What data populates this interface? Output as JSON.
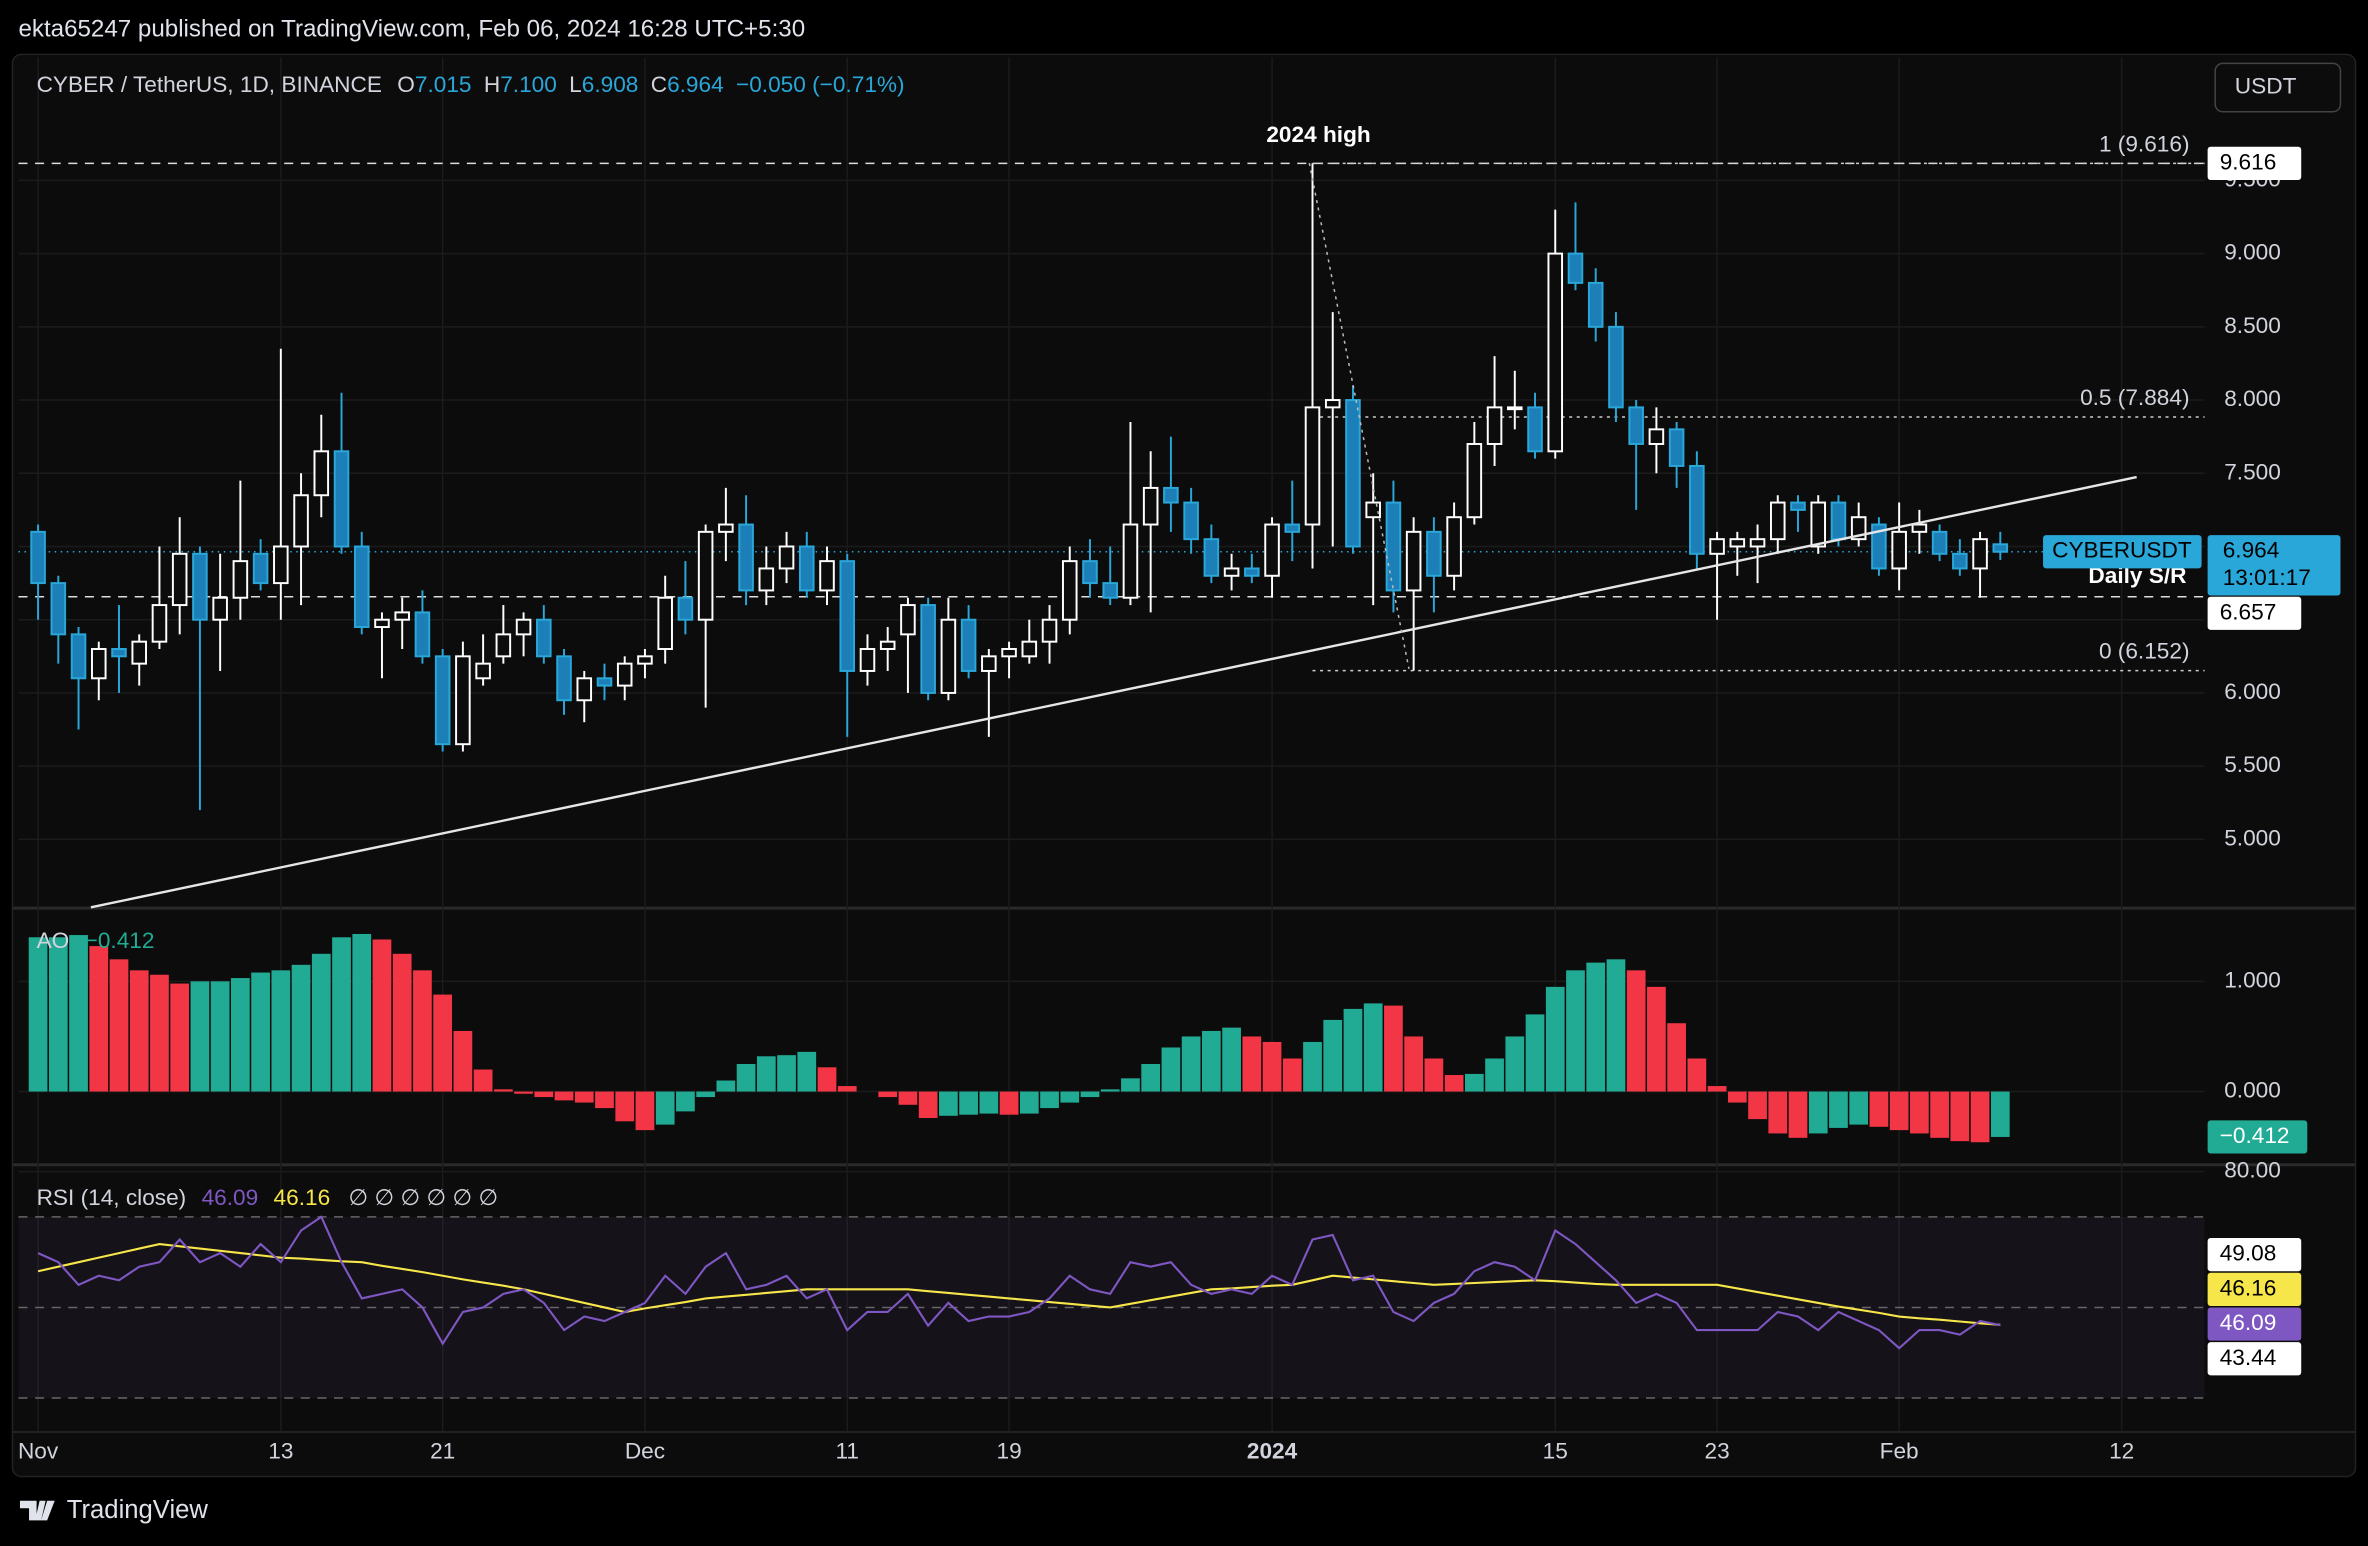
{
  "header": "ekta65247 published on TradingView.com, Feb 06, 2024 16:28 UTC+5:30",
  "currency_button": "USDT",
  "footer_brand": "TradingView",
  "chart_data": [
    {
      "type": "candlestick",
      "legend": {
        "symbol": "CYBER / TetherUS, 1D, BINANCE",
        "o_label": "O",
        "o": "7.015",
        "h_label": "H",
        "h": "7.100",
        "l_label": "L",
        "l": "6.908",
        "c_label": "C",
        "c": "6.964",
        "change": "−0.050 (−0.71%)"
      },
      "categories": [
        "Nov",
        null,
        null,
        null,
        null,
        null,
        null,
        null,
        null,
        null,
        null,
        null,
        "13",
        null,
        null,
        null,
        null,
        null,
        null,
        null,
        "21",
        null,
        null,
        null,
        null,
        null,
        null,
        null,
        null,
        null,
        "Dec",
        null,
        null,
        null,
        null,
        null,
        null,
        null,
        null,
        null,
        "11",
        null,
        null,
        null,
        null,
        null,
        null,
        null,
        "19",
        null,
        null,
        null,
        null,
        null,
        null,
        null,
        null,
        null,
        null,
        null,
        null,
        "2024",
        null,
        null,
        null,
        null,
        null,
        null,
        null,
        null,
        null,
        null,
        null,
        null,
        null,
        "15",
        null,
        null,
        null,
        null,
        null,
        null,
        null,
        "23",
        null,
        null,
        null,
        null,
        null,
        null,
        null,
        null,
        "Feb",
        null,
        null,
        null,
        null,
        null,
        null,
        null,
        null,
        null,
        null,
        "12",
        null,
        null,
        null,
        null
      ],
      "open": [
        7.1,
        6.75,
        6.4,
        6.1,
        6.3,
        6.2,
        6.35,
        6.6,
        6.95,
        6.5,
        6.65,
        6.95,
        6.75,
        7.0,
        7.35,
        7.65,
        7.0,
        6.45,
        6.5,
        6.55,
        6.25,
        5.65,
        6.1,
        6.25,
        6.4,
        6.5,
        6.25,
        5.95,
        6.1,
        6.05,
        6.2,
        6.3,
        6.65,
        6.5,
        7.1,
        7.15,
        6.7,
        6.85,
        7.0,
        6.7,
        6.9,
        6.15,
        6.3,
        6.4,
        6.6,
        6.0,
        6.5,
        6.15,
        6.25,
        6.25,
        6.35,
        6.5,
        6.9,
        6.75,
        6.65,
        7.15,
        7.4,
        7.3,
        7.05,
        6.8,
        6.85,
        6.8,
        7.15,
        7.15,
        7.95,
        8.0,
        7.2,
        7.3,
        6.7,
        7.1,
        6.8,
        7.2,
        7.7,
        7.95,
        7.95,
        7.65,
        9.0,
        8.8,
        8.5,
        7.95,
        7.7,
        7.8,
        7.55,
        6.95,
        7.0,
        7.0,
        7.05,
        7.3,
        7.0,
        7.3,
        7.05,
        7.15,
        6.85,
        7.1,
        7.1,
        6.95,
        6.85,
        7.015,
        null,
        null,
        null,
        null,
        null,
        null,
        null,
        null,
        null,
        null
      ],
      "high": [
        7.15,
        6.8,
        6.45,
        6.35,
        6.6,
        6.4,
        7.0,
        7.2,
        7.0,
        6.95,
        7.45,
        7.05,
        8.35,
        7.5,
        7.9,
        8.05,
        7.1,
        6.55,
        6.65,
        6.7,
        6.3,
        6.35,
        6.4,
        6.6,
        6.55,
        6.6,
        6.3,
        6.15,
        6.2,
        6.25,
        6.3,
        6.8,
        6.9,
        7.15,
        7.4,
        7.35,
        7.0,
        7.1,
        7.1,
        7.0,
        6.95,
        6.4,
        6.45,
        6.65,
        6.65,
        6.65,
        6.6,
        6.3,
        6.35,
        6.5,
        6.6,
        7.0,
        7.05,
        7.0,
        7.85,
        7.65,
        7.75,
        7.4,
        7.15,
        6.95,
        6.95,
        7.2,
        7.45,
        9.616,
        8.6,
        8.1,
        7.5,
        7.45,
        7.2,
        7.2,
        7.3,
        7.85,
        8.3,
        8.2,
        8.05,
        9.3,
        9.35,
        8.9,
        8.6,
        8.0,
        7.95,
        7.85,
        7.65,
        7.1,
        7.1,
        7.15,
        7.35,
        7.35,
        7.35,
        7.35,
        7.3,
        7.2,
        7.3,
        7.25,
        7.15,
        7.05,
        7.1,
        7.1,
        null,
        null,
        null,
        null,
        null,
        null,
        null,
        null,
        null,
        null
      ],
      "low": [
        6.5,
        6.2,
        5.75,
        5.95,
        6.0,
        6.05,
        6.3,
        6.4,
        5.2,
        6.15,
        6.5,
        6.7,
        6.5,
        6.6,
        7.2,
        6.95,
        6.4,
        6.1,
        6.3,
        6.2,
        5.6,
        5.6,
        6.05,
        6.2,
        6.25,
        6.2,
        5.85,
        5.8,
        5.95,
        5.95,
        6.1,
        6.2,
        6.4,
        5.9,
        6.9,
        6.6,
        6.6,
        6.75,
        6.65,
        6.6,
        5.7,
        6.05,
        6.15,
        6.0,
        5.95,
        5.95,
        6.1,
        5.7,
        6.1,
        6.2,
        6.2,
        6.4,
        6.65,
        6.6,
        6.6,
        6.55,
        7.1,
        6.95,
        6.75,
        6.7,
        6.75,
        6.65,
        6.9,
        6.85,
        7.0,
        6.95,
        6.6,
        6.55,
        6.152,
        6.55,
        6.7,
        7.15,
        7.55,
        7.8,
        7.6,
        7.6,
        8.75,
        8.4,
        7.85,
        7.25,
        7.5,
        7.4,
        6.85,
        6.5,
        6.8,
        6.75,
        6.95,
        7.1,
        6.95,
        7.0,
        7.0,
        6.8,
        6.7,
        6.95,
        6.9,
        6.8,
        6.65,
        6.908,
        null,
        null,
        null,
        null,
        null,
        null,
        null,
        null,
        null,
        null
      ],
      "close": [
        6.75,
        6.4,
        6.1,
        6.3,
        6.25,
        6.35,
        6.6,
        6.95,
        6.5,
        6.65,
        6.9,
        6.75,
        7.0,
        7.35,
        7.65,
        7.0,
        6.45,
        6.5,
        6.55,
        6.25,
        5.65,
        6.25,
        6.2,
        6.4,
        6.5,
        6.25,
        5.95,
        6.1,
        6.05,
        6.2,
        6.25,
        6.65,
        6.5,
        7.1,
        7.15,
        6.7,
        6.85,
        7.0,
        6.7,
        6.9,
        6.15,
        6.3,
        6.35,
        6.6,
        6.0,
        6.5,
        6.15,
        6.25,
        6.3,
        6.35,
        6.5,
        6.9,
        6.75,
        6.65,
        7.15,
        7.4,
        7.3,
        7.05,
        6.8,
        6.85,
        6.8,
        7.15,
        7.1,
        7.95,
        8.0,
        7.0,
        7.3,
        6.7,
        7.1,
        6.8,
        7.2,
        7.7,
        7.95,
        7.95,
        7.65,
        9.0,
        8.8,
        8.5,
        7.95,
        7.7,
        7.8,
        7.55,
        6.95,
        7.05,
        7.05,
        7.05,
        7.3,
        7.25,
        7.3,
        7.05,
        7.2,
        6.85,
        7.1,
        7.15,
        6.95,
        6.85,
        7.05,
        6.964,
        null,
        null,
        null,
        null,
        null,
        null,
        null,
        null,
        null,
        null
      ],
      "up_color": "#ffffff",
      "down_color": "#2aa7d9",
      "xlim": [
        -0.97,
        107.1
      ],
      "ylim": [
        4.546,
        10.34
      ],
      "yticks": [
        {
          "value": 5,
          "label": "5.000"
        },
        {
          "value": 5.5,
          "label": "5.500"
        },
        {
          "value": 6,
          "label": "6.000"
        },
        {
          "value": 6.5,
          "label": "6.500"
        },
        {
          "value": 7,
          "label": "7.000"
        },
        {
          "value": 7.5,
          "label": "7.500"
        },
        {
          "value": 8,
          "label": "8.000"
        },
        {
          "value": 8.5,
          "label": "8.500"
        },
        {
          "value": 9,
          "label": "9.000"
        },
        {
          "value": 9.5,
          "label": "9.500"
        }
      ],
      "grid": true,
      "high_level": {
        "value": 9.616,
        "label": "2024 high"
      },
      "fib_levels": [
        {
          "value": 9.616,
          "label": "1 (9.616)"
        },
        {
          "value": 7.884,
          "label": "0.5 (7.884)"
        },
        {
          "value": 6.152,
          "label": "0 (6.152)"
        }
      ],
      "sr_level": {
        "value": 6.657,
        "label": "Daily S/R"
      },
      "last_price": {
        "symbol": "CYBERUSDT",
        "countdown": "13:01:17"
      }
    },
    {
      "type": "bar",
      "title": "AO",
      "values": [
        1.4,
        1.4,
        1.42,
        1.32,
        1.2,
        1.1,
        1.06,
        0.98,
        1.0,
        1.0,
        1.03,
        1.08,
        1.1,
        1.15,
        1.25,
        1.4,
        1.43,
        1.38,
        1.25,
        1.1,
        0.88,
        0.55,
        0.2,
        0.02,
        -0.02,
        -0.05,
        -0.08,
        -0.1,
        -0.15,
        -0.27,
        -0.35,
        -0.3,
        -0.18,
        -0.05,
        0.1,
        0.25,
        0.32,
        0.33,
        0.36,
        0.22,
        0.05,
        0.0,
        -0.05,
        -0.12,
        -0.24,
        -0.22,
        -0.21,
        -0.2,
        -0.21,
        -0.2,
        -0.15,
        -0.1,
        -0.05,
        0.02,
        0.12,
        0.25,
        0.4,
        0.5,
        0.55,
        0.58,
        0.5,
        0.45,
        0.3,
        0.45,
        0.65,
        0.75,
        0.8,
        0.78,
        0.5,
        0.3,
        0.15,
        0.16,
        0.3,
        0.5,
        0.7,
        0.95,
        1.1,
        1.17,
        1.2,
        1.1,
        0.95,
        0.62,
        0.3,
        0.05,
        -0.1,
        -0.25,
        -0.38,
        -0.42,
        -0.38,
        -0.33,
        -0.3,
        -0.32,
        -0.35,
        -0.38,
        -0.42,
        -0.45,
        -0.46,
        -0.412,
        null,
        null,
        null,
        null,
        null,
        null,
        null,
        null,
        null,
        null
      ],
      "last_value_label": "−0.412",
      "up_color": "#22ab94",
      "down_color": "#f23645",
      "ylim": [
        -0.644,
        1.644
      ],
      "yticks": [
        {
          "value": 0,
          "label": "0.000"
        },
        {
          "value": 1,
          "label": "1.000"
        }
      ],
      "grid": true
    },
    {
      "type": "line",
      "title": "RSI (14, close)",
      "legend_extra": "∅ ∅ ∅ ∅ ∅ ∅",
      "series": [
        {
          "color": "#7e57c2",
          "values": [
            62,
            60,
            55,
            57,
            56,
            59,
            60,
            65,
            60,
            62,
            59,
            64,
            60,
            67,
            70,
            60,
            52,
            53,
            54,
            50,
            42,
            49,
            50,
            53,
            54,
            51,
            45,
            48,
            47,
            49,
            51,
            57,
            53,
            59,
            62,
            54,
            55,
            57,
            52,
            54,
            45,
            49,
            49,
            53,
            46,
            51,
            47,
            48,
            48,
            49,
            52,
            57,
            54,
            53,
            60,
            59,
            60,
            55,
            53,
            54,
            53,
            57,
            55,
            65,
            66,
            56,
            57,
            49,
            47,
            51,
            53,
            58,
            60,
            59,
            56,
            67,
            64,
            60,
            56,
            51,
            53,
            51,
            45,
            45,
            45,
            45,
            49,
            48,
            45,
            49,
            47,
            45,
            41,
            45,
            45,
            44,
            47,
            46.09,
            null,
            null,
            null,
            null,
            null,
            null,
            null,
            null,
            null,
            null
          ]
        },
        {
          "color": "#f7e64a",
          "values": [
            58,
            59,
            60,
            61,
            62,
            63,
            64,
            63.5,
            63,
            62.5,
            62,
            61.5,
            61,
            60.8,
            60.5,
            60.2,
            60,
            59.2,
            58.5,
            57.8,
            57,
            56.2,
            55.5,
            54.8,
            54,
            53,
            52,
            51,
            50,
            49,
            49.8,
            50.5,
            51.2,
            52,
            52.4,
            52.8,
            53.2,
            53.6,
            54,
            54,
            54,
            54,
            54,
            54,
            53.6,
            53.2,
            52.8,
            52.4,
            52,
            51.6,
            51.2,
            50.8,
            50.4,
            50,
            50.8,
            51.6,
            52.4,
            53.2,
            54,
            54.2,
            54.5,
            54.8,
            55,
            56,
            57,
            56.6,
            56.2,
            55.8,
            55.4,
            55,
            55.2,
            55.4,
            55.6,
            55.8,
            56,
            55.8,
            55.5,
            55.2,
            55,
            55,
            55,
            55,
            55,
            55,
            54.2,
            53.4,
            52.6,
            51.8,
            51,
            50.2,
            49.5,
            48.8,
            48,
            47.6,
            47.3,
            46.9,
            46.5,
            46.16,
            null,
            null,
            null,
            null,
            null,
            null,
            null,
            null,
            null,
            null
          ]
        }
      ],
      "levels": [
        70,
        50,
        30
      ],
      "band_badges": [
        49.08,
        43.44
      ],
      "ylim": [
        22.67,
        81
      ],
      "yticks": [
        {
          "value": 80,
          "label": "80.00"
        }
      ],
      "grid": true
    }
  ]
}
